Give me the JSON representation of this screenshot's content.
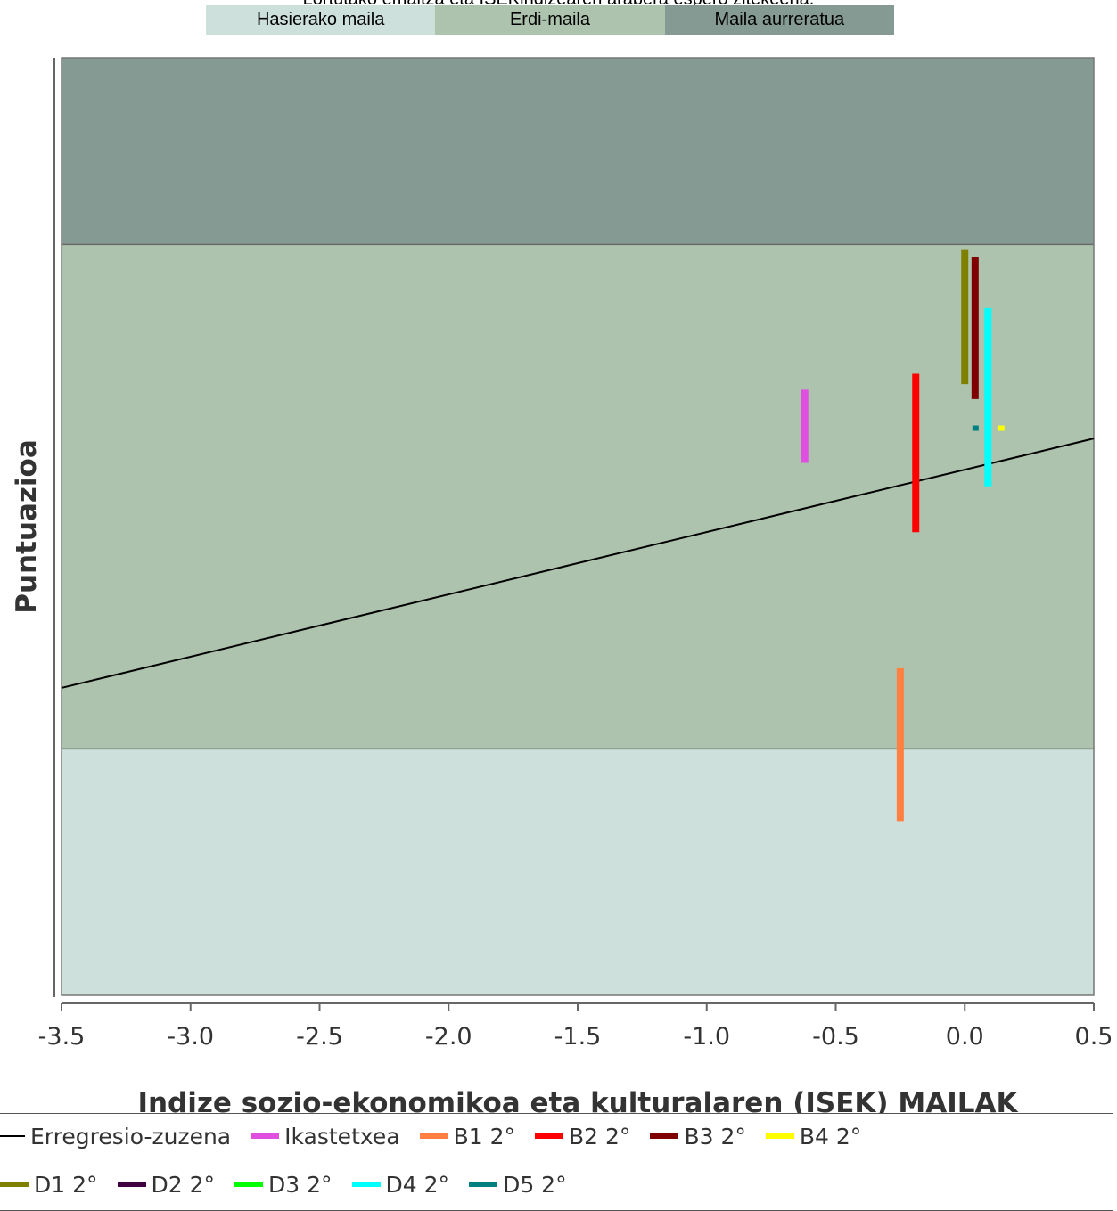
{
  "chart_data": {
    "type": "scatter",
    "title": "Lortutako emaitza eta ISEKindizearen arabera espero zitekeena.",
    "xlabel": "Indize sozio-ekonomikoa eta kulturalaren (ISEK) MAILAK",
    "ylabel": "Puntuazioa",
    "xlim": [
      -3.5,
      0.5
    ],
    "xticks": [
      -3.5,
      -3.0,
      -2.5,
      -2.0,
      -1.5,
      -1.0,
      -0.5,
      0.0,
      0.5
    ],
    "xtick_labels": [
      "-3.5",
      "-3.0",
      "-2.5",
      "-2.0",
      "-1.5",
      "-1.0",
      "-0.5",
      "0.0",
      "0.5"
    ],
    "ylim": [
      0,
      100
    ],
    "grid": false,
    "legend_position": "bottom",
    "bands": [
      {
        "name": "Hasierako maila",
        "from": 0,
        "to": 26.3,
        "color": "#cde0dc"
      },
      {
        "name": "Erdi-maila",
        "from": 26.3,
        "to": 80.1,
        "color": "#adc3ad"
      },
      {
        "name": "Maila aurreratua",
        "from": 80.1,
        "to": 100,
        "color": "#869a94"
      }
    ],
    "regression_line": {
      "name": "Erregresio-zuzena",
      "color": "#000000",
      "x": [
        -3.5,
        0.5
      ],
      "y": [
        32.8,
        59.4
      ]
    },
    "series": [
      {
        "name": "Ikastetxea",
        "color": "#e050e0",
        "x": -0.62,
        "y_low": 56.8,
        "y_high": 64.6
      },
      {
        "name": "B1 2°",
        "color": "#ff8040",
        "x": -0.25,
        "y_low": 18.6,
        "y_high": 34.9
      },
      {
        "name": "B2 2°",
        "color": "#ff0000",
        "x": -0.19,
        "y_low": 49.4,
        "y_high": 66.3
      },
      {
        "name": "B3 2°",
        "color": "#800000",
        "x": 0.04,
        "y_low": 63.6,
        "y_high": 78.8
      },
      {
        "name": "B4 2°",
        "color": "#ffff00",
        "x": 0.14,
        "y_low": 60.2,
        "y_high": 60.8
      },
      {
        "name": "D1 2°",
        "color": "#808000",
        "x": 0.0,
        "y_low": 65.2,
        "y_high": 79.6
      },
      {
        "name": "D2 2°",
        "color": "#400040",
        "x": null,
        "y_low": null,
        "y_high": null
      },
      {
        "name": "D3 2°",
        "color": "#00ff00",
        "x": null,
        "y_low": null,
        "y_high": null
      },
      {
        "name": "D4 2°",
        "color": "#00ffff",
        "x": 0.09,
        "y_low": 54.3,
        "y_high": 73.3
      },
      {
        "name": "D5 2°",
        "color": "#008080",
        "x": 0.04,
        "y_low": 60.2,
        "y_high": 60.8
      }
    ]
  }
}
